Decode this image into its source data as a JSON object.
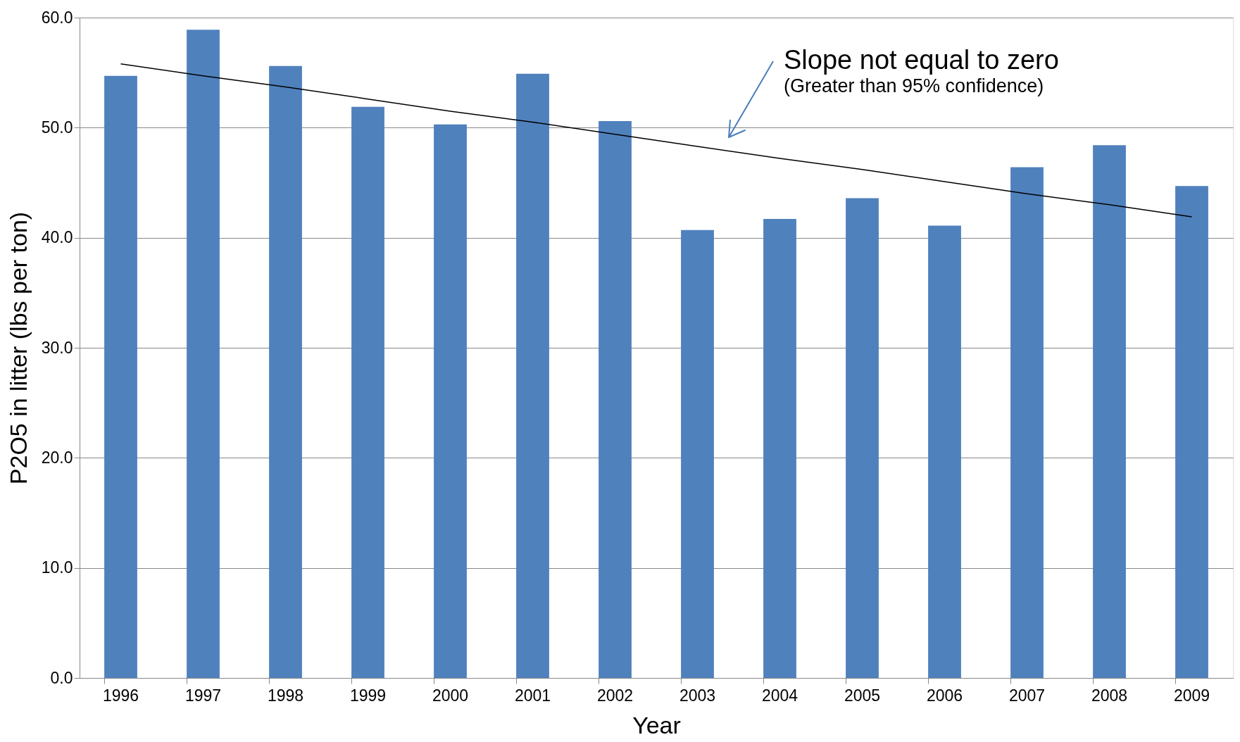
{
  "chart_data": {
    "type": "bar",
    "xlabel": "Year",
    "ylabel": "P2O5 in litter (lbs per ton)",
    "categories": [
      "1996",
      "1997",
      "1998",
      "1999",
      "2000",
      "2001",
      "2002",
      "2003",
      "2004",
      "2005",
      "2006",
      "2007",
      "2008",
      "2009"
    ],
    "series": [
      {
        "color": "#4f81bd",
        "values": [
          54.7,
          58.9,
          55.6,
          51.9,
          50.3,
          54.9,
          50.6,
          40.7,
          41.7,
          43.6,
          41.1,
          46.4,
          48.4,
          44.7
        ]
      },
      {
        "type": "line",
        "color": "#000000",
        "values": [
          55.8,
          54.7,
          53.7,
          52.6,
          51.5,
          50.5,
          49.4,
          48.3,
          47.2,
          46.2,
          45.1,
          44.0,
          43.0,
          41.9
        ]
      }
    ],
    "ylim": [
      0,
      60
    ],
    "yticks": [
      {
        "value": 0,
        "label": "0.0"
      },
      {
        "value": 10,
        "label": "10.0"
      },
      {
        "value": 20,
        "label": "20.0"
      },
      {
        "value": 30,
        "label": "30.0"
      },
      {
        "value": 40,
        "label": "40.0"
      },
      {
        "value": 50,
        "label": "50.0"
      },
      {
        "value": 60,
        "label": "60.0"
      }
    ],
    "grid": "y",
    "annotations": [
      "Slope not equal to zero",
      "(Greater than 95% confidence)"
    ]
  }
}
